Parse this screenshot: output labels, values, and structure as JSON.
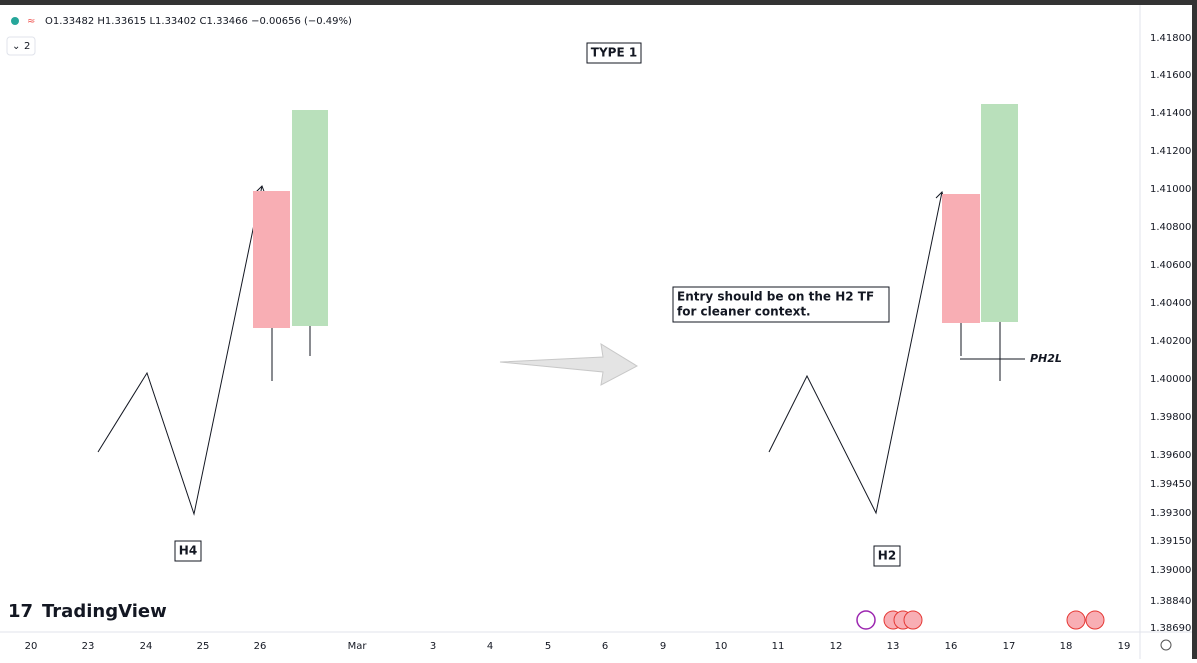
{
  "header": {
    "ohlc": "O1.33482 H1.33615 L1.33402 C1.33466 −0.00656 (−0.49%)",
    "indicator_count": "2"
  },
  "annotations": {
    "title": "TYPE 1",
    "left_label": "H4",
    "right_label": "H2",
    "note_line1": "Entry should be on the H2 TF",
    "note_line2": "for cleaner context.",
    "level_label": "PH2L"
  },
  "brand": "TradingView",
  "price_axis": [
    "1.41800",
    "1.41600",
    "1.41400",
    "1.41200",
    "1.41000",
    "1.40800",
    "1.40600",
    "1.40400",
    "1.40200",
    "1.40000",
    "1.39800",
    "1.39600",
    "1.39450",
    "1.39300",
    "1.39150",
    "1.39000",
    "1.38840",
    "1.38690"
  ],
  "time_axis": [
    "20",
    "23",
    "24",
    "25",
    "26",
    "Mar",
    "3",
    "4",
    "5",
    "6",
    "9",
    "10",
    "11",
    "12",
    "13",
    "16",
    "17",
    "18",
    "19"
  ]
}
